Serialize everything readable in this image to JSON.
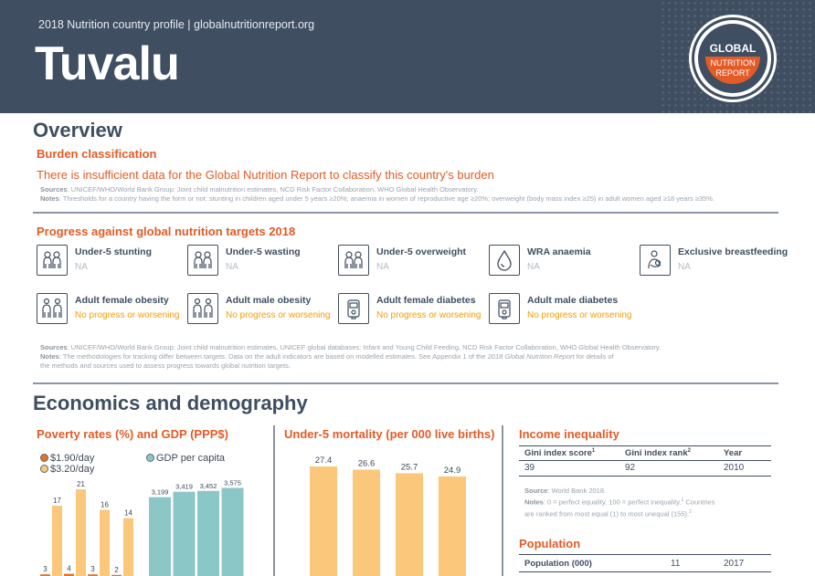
{
  "header": {
    "subtitle": "2018 Nutrition country profile  |  globalnutritionreport.org",
    "country": "Tuvalu",
    "logo_line1": "GLOBAL",
    "logo_line2": "NUTRITION",
    "logo_line3": "REPORT"
  },
  "overview": {
    "heading": "Overview",
    "burden_heading": "Burden classification",
    "burden_text": "There is insufficient data for the Global Nutrition Report to classify this country's burden",
    "burden_sources_label": "Sources",
    "burden_sources": ": UNICEF/WHO/World Bank Group: Joint child malnutrition estimates, NCD Risk Factor Collaboration, WHO Global Health Observatory.",
    "burden_notes_label": "Notes",
    "burden_notes": ": Thresholds for a country having the form or not: stunting in children aged under 5 years ≥20%; anaemia in women of reproductive age ≥20%; overweight (body mass index ≥25) in adult women aged ≥18 years ≥35%.",
    "progress_heading": "Progress against global nutrition targets 2018",
    "targets": [
      {
        "label": "Under-5 stunting",
        "value": "NA",
        "icon": "two-children-icon",
        "status": "na"
      },
      {
        "label": "Under-5 wasting",
        "value": "NA",
        "icon": "two-children-icon",
        "status": "na"
      },
      {
        "label": "Under-5 overweight",
        "value": "NA",
        "icon": "two-children-icon",
        "status": "na"
      },
      {
        "label": "WRA anaemia",
        "value": "NA",
        "icon": "blood-drop-icon",
        "status": "na"
      },
      {
        "label": "Exclusive breastfeeding",
        "value": "NA",
        "icon": "breastfeeding-icon",
        "status": "na"
      },
      {
        "label": "Adult female obesity",
        "value": "No progress or worsening",
        "icon": "two-adults-icon",
        "status": "bad"
      },
      {
        "label": "Adult male obesity",
        "value": "No progress or worsening",
        "icon": "two-adults-icon",
        "status": "bad"
      },
      {
        "label": "Adult female diabetes",
        "value": "No progress or worsening",
        "icon": "glucose-meter-icon",
        "status": "bad"
      },
      {
        "label": "Adult male diabetes",
        "value": "No progress or worsening",
        "icon": "glucose-meter-icon",
        "status": "bad"
      }
    ],
    "progress_sources_label": "Sources",
    "progress_sources": ": UNICEF/WHO/World Bank Group: Joint child malnutrition estimates, UNICEF global databases: Infant and Young Child Feeding, NCD Risk Factor Collaboration, WHO Global Health Observatory.",
    "progress_notes_label": "Notes",
    "progress_notes_1": ": The methodologies for tracking differ between targets. Data on the adult indicators are based on modelled estimates. See Appendix 1 of the ",
    "progress_notes_italic": "2018 Global Nutrition Report",
    "progress_notes_2": " for details of",
    "progress_notes_3": "the methods and sources used to assess progress towards global nutrition targets."
  },
  "economics": {
    "heading": "Economics and demography",
    "poverty_heading": "Poverty rates (%) and GDP (PPP$)",
    "legend_190": "$1.90/day",
    "legend_320": "$3.20/day",
    "legend_gdp": "GDP per capita",
    "mortality_heading": "Under-5 mortality (per 000 live births)",
    "income_heading": "Income inequality",
    "gini_headers": {
      "score": "Gini index score",
      "score_sup": "1",
      "rank": "Gini index rank",
      "rank_sup": "2",
      "year": "Year"
    },
    "gini_values": {
      "score": "39",
      "rank": "92",
      "year": "2010"
    },
    "gini_source_label": "Source",
    "gini_source": ": World Bank 2018.",
    "gini_notes_label": "Notes",
    "gini_notes_1": ": 0 = perfect equality, 100 = perfect inequality.",
    "gini_notes_sup1": "1",
    "gini_notes_2": " Countries",
    "gini_notes_3": "are ranked from most equal (1) to most unequal (155).",
    "gini_notes_sup2": "2",
    "population_heading": "Population",
    "population_row": {
      "label": "Population (000)",
      "value": "11",
      "year": "2017"
    }
  },
  "colors": {
    "dark_blue": "#3f4e60",
    "orange": "#e35b26",
    "orange_dark": "#e8731f",
    "light_orange": "#fbc77a",
    "teal": "#8cc7c7"
  },
  "chart_data": [
    {
      "type": "bar",
      "title": "Poverty rates (%) and GDP (PPP$)",
      "series": [
        {
          "name": "$1.90/day",
          "values": [
            3,
            4,
            3,
            2
          ]
        },
        {
          "name": "$3.20/day",
          "values": [
            17,
            21,
            16,
            14
          ]
        },
        {
          "name": "GDP per capita",
          "values": [
            3199,
            3419,
            3452,
            3575
          ]
        }
      ],
      "poverty_value_labels": [
        "3",
        "17",
        "4",
        "21",
        "3",
        "16",
        "2",
        "14"
      ],
      "gdp_labels": [
        "3,199",
        "3,419",
        "3,452",
        "3,575"
      ]
    },
    {
      "type": "bar",
      "title": "Under-5 mortality (per 000 live births)",
      "values": [
        27.4,
        26.6,
        25.7,
        24.9
      ],
      "labels": [
        "27.4",
        "26.6",
        "25.7",
        "24.9"
      ]
    }
  ]
}
